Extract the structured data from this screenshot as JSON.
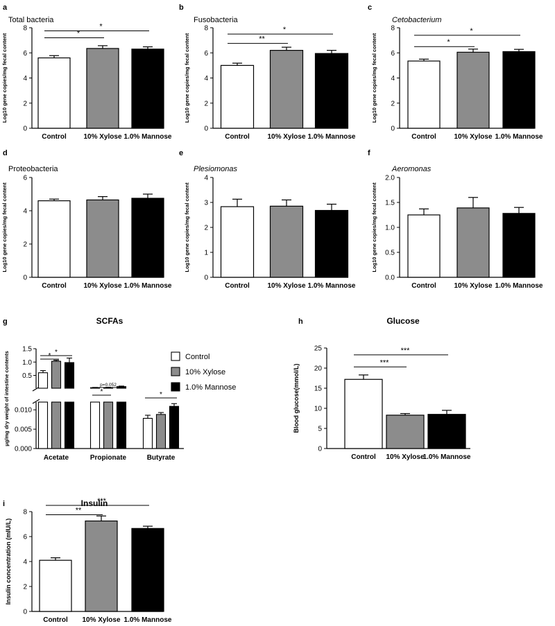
{
  "chart_data": [
    {
      "id": "a",
      "panel_label": "a",
      "type": "bar",
      "title": "Total bacteria",
      "title_italic": false,
      "ylabel": "Log10 gene copies/mg fecal content",
      "categories": [
        "Control",
        "10% Xylose",
        "1.0% Mannose"
      ],
      "values": [
        5.6,
        6.35,
        6.3
      ],
      "errors": [
        0.18,
        0.22,
        0.18
      ],
      "ylim": [
        0,
        8
      ],
      "yticks": [
        "0",
        "2",
        "4",
        "6",
        "8"
      ],
      "significance": [
        {
          "from": 0,
          "to": 1,
          "y": 7.2,
          "label": "*"
        },
        {
          "from": 0,
          "to": 2,
          "y": 7.75,
          "label": "*"
        }
      ]
    },
    {
      "id": "b",
      "panel_label": "b",
      "type": "bar",
      "title": "Fusobacteria",
      "title_italic": false,
      "ylabel": "Log10 gene copies/mg fecal content",
      "categories": [
        "Control",
        "10% Xylose",
        "1.0% Mannose"
      ],
      "values": [
        5.0,
        6.2,
        5.95
      ],
      "errors": [
        0.18,
        0.25,
        0.25
      ],
      "ylim": [
        0,
        8
      ],
      "yticks": [
        "0",
        "2",
        "4",
        "6",
        "8"
      ],
      "significance": [
        {
          "from": 0,
          "to": 1,
          "y": 6.75,
          "label": "**"
        },
        {
          "from": 0,
          "to": 2,
          "y": 7.5,
          "label": "*"
        }
      ]
    },
    {
      "id": "c",
      "panel_label": "c",
      "type": "bar",
      "title": "Cetobacterium",
      "title_italic": true,
      "ylabel": "Log10 gene copies/mg fecal content",
      "categories": [
        "Control",
        "10% Xylose",
        "1.0% Mannose"
      ],
      "values": [
        5.35,
        6.05,
        6.1
      ],
      "errors": [
        0.15,
        0.25,
        0.18
      ],
      "ylim": [
        0,
        8
      ],
      "yticks": [
        "0",
        "2",
        "4",
        "6",
        "8"
      ],
      "significance": [
        {
          "from": 0,
          "to": 1,
          "y": 6.5,
          "label": "*"
        },
        {
          "from": 0,
          "to": 2,
          "y": 7.4,
          "label": "*"
        }
      ]
    },
    {
      "id": "d",
      "panel_label": "d",
      "type": "bar",
      "title": "Proteobacteria",
      "title_italic": false,
      "ylabel": "Log10 gene copies/mg fecal content",
      "categories": [
        "Control",
        "10% Xylose",
        "1.0% Mannose"
      ],
      "values": [
        4.6,
        4.65,
        4.75
      ],
      "errors": [
        0.1,
        0.2,
        0.25
      ],
      "ylim": [
        0,
        6
      ],
      "yticks": [
        "0",
        "2",
        "4",
        "6"
      ],
      "significance": []
    },
    {
      "id": "e",
      "panel_label": "e",
      "type": "bar",
      "title": "Plesiomonas",
      "title_italic": true,
      "ylabel": "Log10 gene copies/mg fecal content",
      "categories": [
        "Control",
        "10% Xylose",
        "1.0% Mannose"
      ],
      "values": [
        2.83,
        2.85,
        2.68
      ],
      "errors": [
        0.3,
        0.25,
        0.25
      ],
      "ylim": [
        0,
        4
      ],
      "yticks": [
        "0",
        "1",
        "2",
        "3",
        "4"
      ],
      "significance": []
    },
    {
      "id": "f",
      "panel_label": "f",
      "type": "bar",
      "title": "Aeromonas",
      "title_italic": true,
      "ylabel": "Log10 gene copies/mg fecal content",
      "categories": [
        "Control",
        "10% Xylose",
        "1.0% Mannose"
      ],
      "values": [
        1.25,
        1.39,
        1.28
      ],
      "errors": [
        0.12,
        0.21,
        0.12
      ],
      "ylim": [
        0,
        2.0
      ],
      "yticks": [
        "0.0",
        "0.5",
        "1.0",
        "1.5",
        "2.0"
      ],
      "significance": []
    },
    {
      "id": "g",
      "panel_label": "g",
      "type": "bar",
      "title": "SCFAs",
      "ylabel": "μg/mg dry weight of intestine contents",
      "categories": [
        "Acetate",
        "Propionate",
        "Butyrate"
      ],
      "series": [
        {
          "name": "Control",
          "values": [
            0.6,
            0.04,
            0.0078
          ],
          "errors": [
            0.08,
            0.01,
            0.0008
          ]
        },
        {
          "name": "10% Xylose",
          "values": [
            1.03,
            0.045,
            0.0088
          ],
          "errors": [
            0.04,
            0.01,
            0.0005
          ]
        },
        {
          "name": "1.0% Mannose",
          "values": [
            0.98,
            0.08,
            0.0109
          ],
          "errors": [
            0.17,
            0.02,
            0.0007
          ]
        }
      ],
      "ylim": [
        0,
        1.5
      ],
      "axis_break": {
        "lower": [
          0,
          0.012
        ],
        "upper": [
          0.02,
          1.5
        ]
      },
      "yticks_lower": [
        "0.000",
        "0.005",
        "0.010"
      ],
      "yticks_upper": [
        "0.5",
        "1.0",
        "1.5"
      ],
      "significance": [
        {
          "category": 0,
          "from": 0,
          "to": 1,
          "label": "*"
        },
        {
          "category": 0,
          "from": 0,
          "to": 2,
          "label": "*"
        },
        {
          "category": 1,
          "from": 0,
          "to": 1,
          "label": "*"
        },
        {
          "category": 1,
          "from": 0,
          "to": 2,
          "label": "p=0.052"
        },
        {
          "category": 2,
          "from": 0,
          "to": 2,
          "label": "*"
        }
      ],
      "legend": "right"
    },
    {
      "id": "h",
      "panel_label": "h",
      "type": "bar",
      "title": "Glucose",
      "ylabel": "Blood glucose(mmol/L)",
      "categories": [
        "Control",
        "10% Xylose",
        "1.0% Mannose"
      ],
      "values": [
        17.2,
        8.3,
        8.5
      ],
      "errors": [
        1.1,
        0.4,
        1.0
      ],
      "ylim": [
        0,
        25
      ],
      "yticks": [
        "0",
        "5",
        "10",
        "15",
        "20",
        "25"
      ],
      "significance": [
        {
          "from": 0,
          "to": 1,
          "y": 20.3,
          "label": "***"
        },
        {
          "from": 0,
          "to": 2,
          "y": 23.3,
          "label": "***"
        }
      ]
    },
    {
      "id": "i",
      "panel_label": "i",
      "type": "bar",
      "title": "Insulin",
      "ylabel": "Insulin concentration (mIU/L)",
      "categories": [
        "Control",
        "10% Xylose",
        "1.0% Mannose"
      ],
      "values": [
        4.1,
        7.25,
        6.65
      ],
      "errors": [
        0.2,
        0.4,
        0.18
      ],
      "ylim": [
        0,
        8
      ],
      "yticks": [
        "0",
        "2",
        "4",
        "6",
        "8"
      ],
      "significance": [
        {
          "from": 0,
          "to": 1,
          "y": 7.75,
          "label": "**"
        },
        {
          "from": 0,
          "to": 2,
          "y": 8.5,
          "label": "***"
        }
      ]
    }
  ],
  "colors": {
    "Control": "#ffffff",
    "10% Xylose": "#8c8c8c",
    "1.0% Mannose": "#000000"
  }
}
